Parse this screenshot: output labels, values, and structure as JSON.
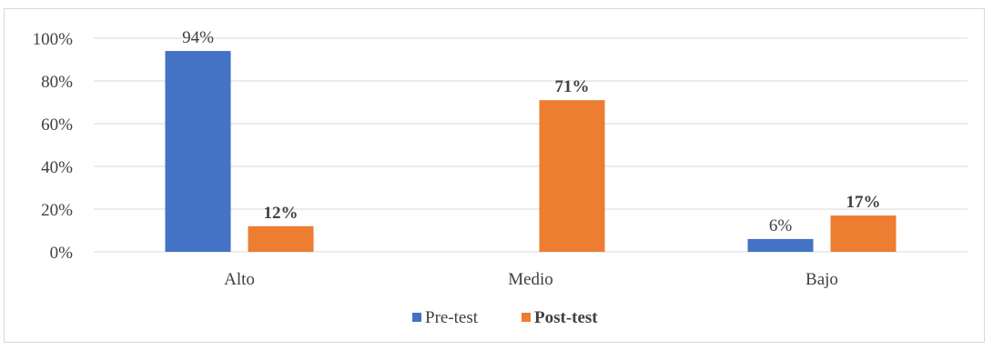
{
  "chart_data": {
    "type": "bar",
    "categories": [
      "Alto",
      "Medio",
      "Bajo"
    ],
    "series": [
      {
        "name": "Pre-test",
        "values": [
          94,
          0,
          6
        ],
        "labels": [
          "94%",
          null,
          "6%"
        ],
        "color": "#4472C4",
        "label_bold": false
      },
      {
        "name": "Post-test",
        "values": [
          12,
          71,
          17
        ],
        "labels": [
          "12%",
          "71%",
          "17%"
        ],
        "color": "#ED7D31",
        "label_bold": true
      }
    ],
    "yticks": [
      "0%",
      "20%",
      "40%",
      "60%",
      "80%",
      "100%"
    ],
    "ylim": [
      0,
      100
    ],
    "grid": true,
    "legend_position": "bottom"
  }
}
